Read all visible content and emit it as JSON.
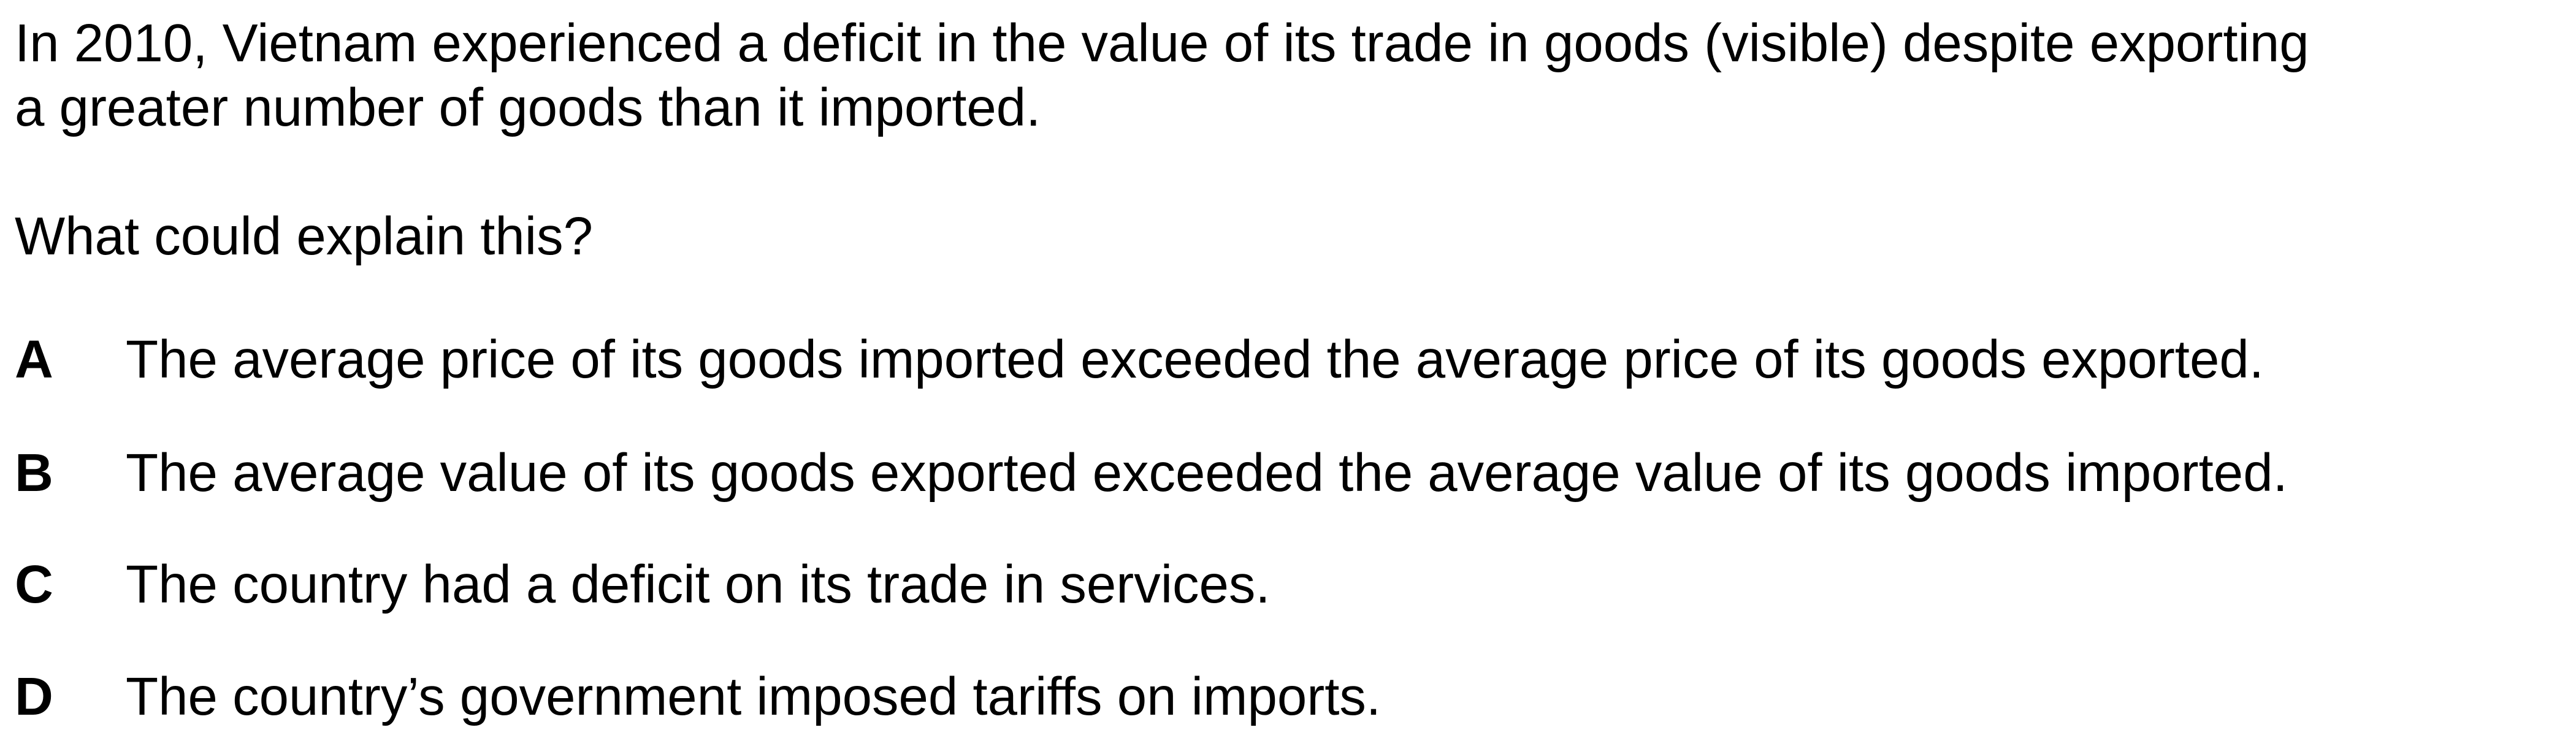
{
  "question": {
    "stem": "In 2010, Vietnam experienced a deficit in the value of its trade in goods (visible) despite exporting\na greater number of goods than it imported.",
    "prompt": "What could explain this?",
    "options": [
      {
        "letter": "A",
        "text": "The average price of its goods imported exceeded the average price of its goods exported."
      },
      {
        "letter": "B",
        "text": "The average value of its goods exported exceeded the average value of its goods imported."
      },
      {
        "letter": "C",
        "text": "The country had a deficit on its trade in services."
      },
      {
        "letter": "D",
        "text": "The country’s government imposed tariffs on imports."
      }
    ]
  }
}
